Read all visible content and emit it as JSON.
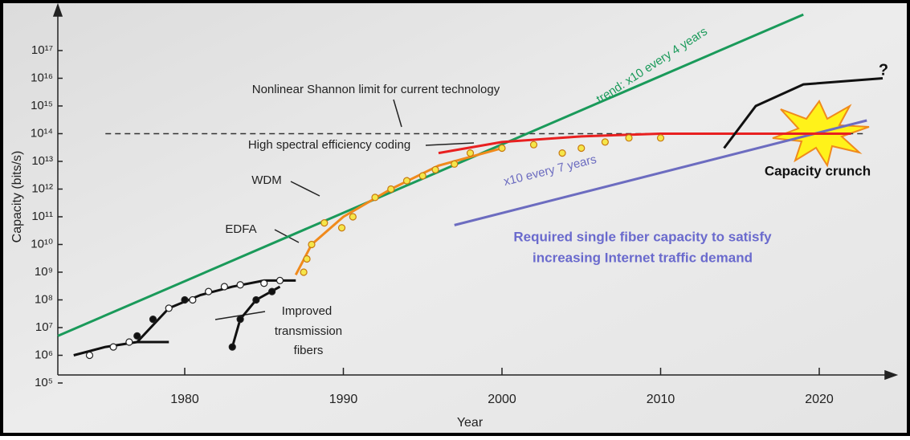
{
  "chart_data": {
    "type": "line",
    "log_y": true,
    "x_label": "Year",
    "y_label": "Capacity  (bits/s)",
    "xlim": [
      1972,
      2024
    ],
    "xticks": [
      1980,
      1990,
      2000,
      2010,
      2020
    ],
    "ylim": [
      100000,
      3000000000000000000
    ],
    "yticks": [
      {
        "value": 100000,
        "label": "10⁵"
      },
      {
        "value": 1000000,
        "label": "10⁶"
      },
      {
        "value": 10000000,
        "label": "10⁷"
      },
      {
        "value": 100000000,
        "label": "10⁸"
      },
      {
        "value": 1000000000,
        "label": "10⁹"
      },
      {
        "value": 10000000000,
        "label": "10¹⁰"
      },
      {
        "value": 100000000000,
        "label": "10¹¹"
      },
      {
        "value": 1000000000000,
        "label": "10¹²"
      },
      {
        "value": 10000000000000,
        "label": "10¹³"
      },
      {
        "value": 100000000000000,
        "label": "10¹⁴"
      },
      {
        "value": 1000000000000000,
        "label": "10¹⁵"
      },
      {
        "value": 10000000000000000,
        "label": "10¹⁶"
      },
      {
        "value": 100000000000000000,
        "label": "10¹⁷"
      }
    ],
    "series": [
      {
        "mode": "line",
        "dash": true,
        "color": "#333333",
        "x": [
          1975,
          2023
        ],
        "values": [
          100000000000000,
          100000000000000
        ]
      },
      {
        "mode": "line",
        "color": "#1a9a5a",
        "x": [
          1972,
          2019
        ],
        "values": [
          5000000,
          2000000000000000000
        ]
      },
      {
        "mode": "line",
        "color": "#6c6cc0",
        "x": [
          1997,
          2023
        ],
        "values": [
          50000000000,
          300000000000000
        ]
      },
      {
        "mode": "line",
        "color": "#f08a1c",
        "x": [
          1987,
          1988,
          1990,
          1993,
          1996,
          2000
        ],
        "values": [
          800000000,
          10000000000,
          100000000000,
          1000000000000,
          7000000000000,
          30000000000000
        ]
      },
      {
        "mode": "line",
        "color": "#e82020",
        "x": [
          1996,
          2000,
          2005,
          2010,
          2022
        ],
        "values": [
          20000000000000,
          50000000000000,
          80000000000000,
          100000000000000,
          100000000000000
        ]
      },
      {
        "mode": "line",
        "color": "#111111",
        "x": [
          2014,
          2016,
          2019,
          2024
        ],
        "values": [
          30000000000000,
          1000000000000000,
          6000000000000000,
          10000000000000000
        ]
      },
      {
        "mode": "line",
        "color": "#111111",
        "x": [
          1973,
          1975,
          1977,
          1979
        ],
        "values": [
          1000000,
          2000000,
          3000000,
          3000000
        ]
      },
      {
        "mode": "line",
        "color": "#111111",
        "x": [
          1977,
          1979,
          1981,
          1983,
          1985,
          1987
        ],
        "values": [
          3000000,
          50000000,
          150000000,
          300000000,
          500000000,
          500000000
        ]
      },
      {
        "mode": "line",
        "color": "#111111",
        "x": [
          1983,
          1983.5,
          1984.5,
          1986
        ],
        "values": [
          2000000,
          20000000,
          100000000,
          300000000
        ]
      },
      {
        "mode": "markers",
        "color": "#ffffff",
        "x": [
          1974,
          1975.5,
          1976.5,
          1979,
          1980.5,
          1981.5,
          1982.5,
          1983.5,
          1985,
          1986
        ],
        "values": [
          1000000,
          2000000,
          3000000,
          50000000,
          100000000,
          200000000,
          300000000,
          350000000,
          400000000,
          500000000
        ]
      },
      {
        "mode": "markers",
        "color": "#111111",
        "x": [
          1977,
          1978,
          1980,
          1983,
          1983.5,
          1984.5,
          1985.5
        ],
        "values": [
          5000000,
          20000000,
          100000000,
          2000000,
          20000000,
          100000000,
          200000000
        ]
      },
      {
        "mode": "markers",
        "color": "#f5e64a",
        "x": [
          1987.5,
          1987.7,
          1988,
          1988.8,
          1989.9,
          1990.6,
          1992,
          1993,
          1994,
          1995,
          1995.8,
          1997,
          1998,
          2000,
          2002,
          2003.8,
          2005,
          2006.5,
          2008,
          2010
        ],
        "values": [
          1000000000,
          3000000000,
          10000000000,
          60000000000,
          40000000000,
          100000000000,
          500000000000,
          1000000000000,
          2000000000000,
          3000000000000,
          5000000000000,
          8000000000000,
          20000000000000,
          30000000000000,
          40000000000000,
          20000000000000,
          30000000000000,
          50000000000000,
          70000000000000,
          70000000000000
        ]
      }
    ],
    "annotations": [
      "Nonlinear Shannon limit for current technology",
      "High spectral efficiency coding",
      "WDM",
      "EDFA",
      "Improved",
      "transmission",
      "fibers",
      "trend: x10 every 4 years",
      "x10 every 7 years",
      "Capacity crunch",
      "Required single fiber capacity to satisfy",
      "increasing Internet traffic demand",
      "?"
    ]
  }
}
